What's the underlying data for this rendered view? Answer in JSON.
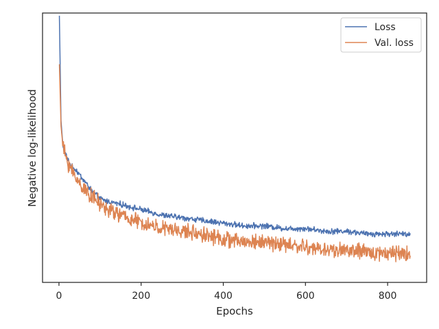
{
  "chart_data": {
    "type": "line",
    "xlabel": "Epochs",
    "ylabel": "Negative log-likelihood",
    "xlim": [
      -40,
      895
    ],
    "xticks": [
      0,
      200,
      400,
      600,
      800
    ],
    "ylim": [
      0,
      1
    ],
    "y_tick_labels_shown": false,
    "grid": false,
    "legend_position": "top-right",
    "series": [
      {
        "name": "Loss",
        "color": "#4c72b0",
        "x": [
          1,
          5,
          10,
          20,
          30,
          40,
          50,
          60,
          80,
          100,
          120,
          150,
          200,
          250,
          300,
          350,
          400,
          450,
          500,
          550,
          600,
          650,
          700,
          750,
          800,
          855
        ],
        "y": [
          0.99,
          0.6,
          0.5,
          0.46,
          0.43,
          0.42,
          0.4,
          0.38,
          0.34,
          0.31,
          0.3,
          0.29,
          0.27,
          0.25,
          0.24,
          0.23,
          0.22,
          0.21,
          0.21,
          0.2,
          0.2,
          0.19,
          0.19,
          0.18,
          0.18,
          0.18
        ]
      },
      {
        "name": "Val. loss",
        "color": "#dd8452",
        "x": [
          1,
          5,
          10,
          20,
          30,
          40,
          50,
          60,
          80,
          100,
          120,
          150,
          200,
          250,
          300,
          350,
          400,
          450,
          500,
          550,
          600,
          650,
          700,
          750,
          800,
          855
        ],
        "y": [
          0.81,
          0.58,
          0.5,
          0.45,
          0.42,
          0.39,
          0.37,
          0.35,
          0.32,
          0.29,
          0.27,
          0.25,
          0.22,
          0.2,
          0.19,
          0.18,
          0.16,
          0.15,
          0.15,
          0.14,
          0.13,
          0.12,
          0.12,
          0.11,
          0.11,
          0.11
        ]
      }
    ]
  }
}
